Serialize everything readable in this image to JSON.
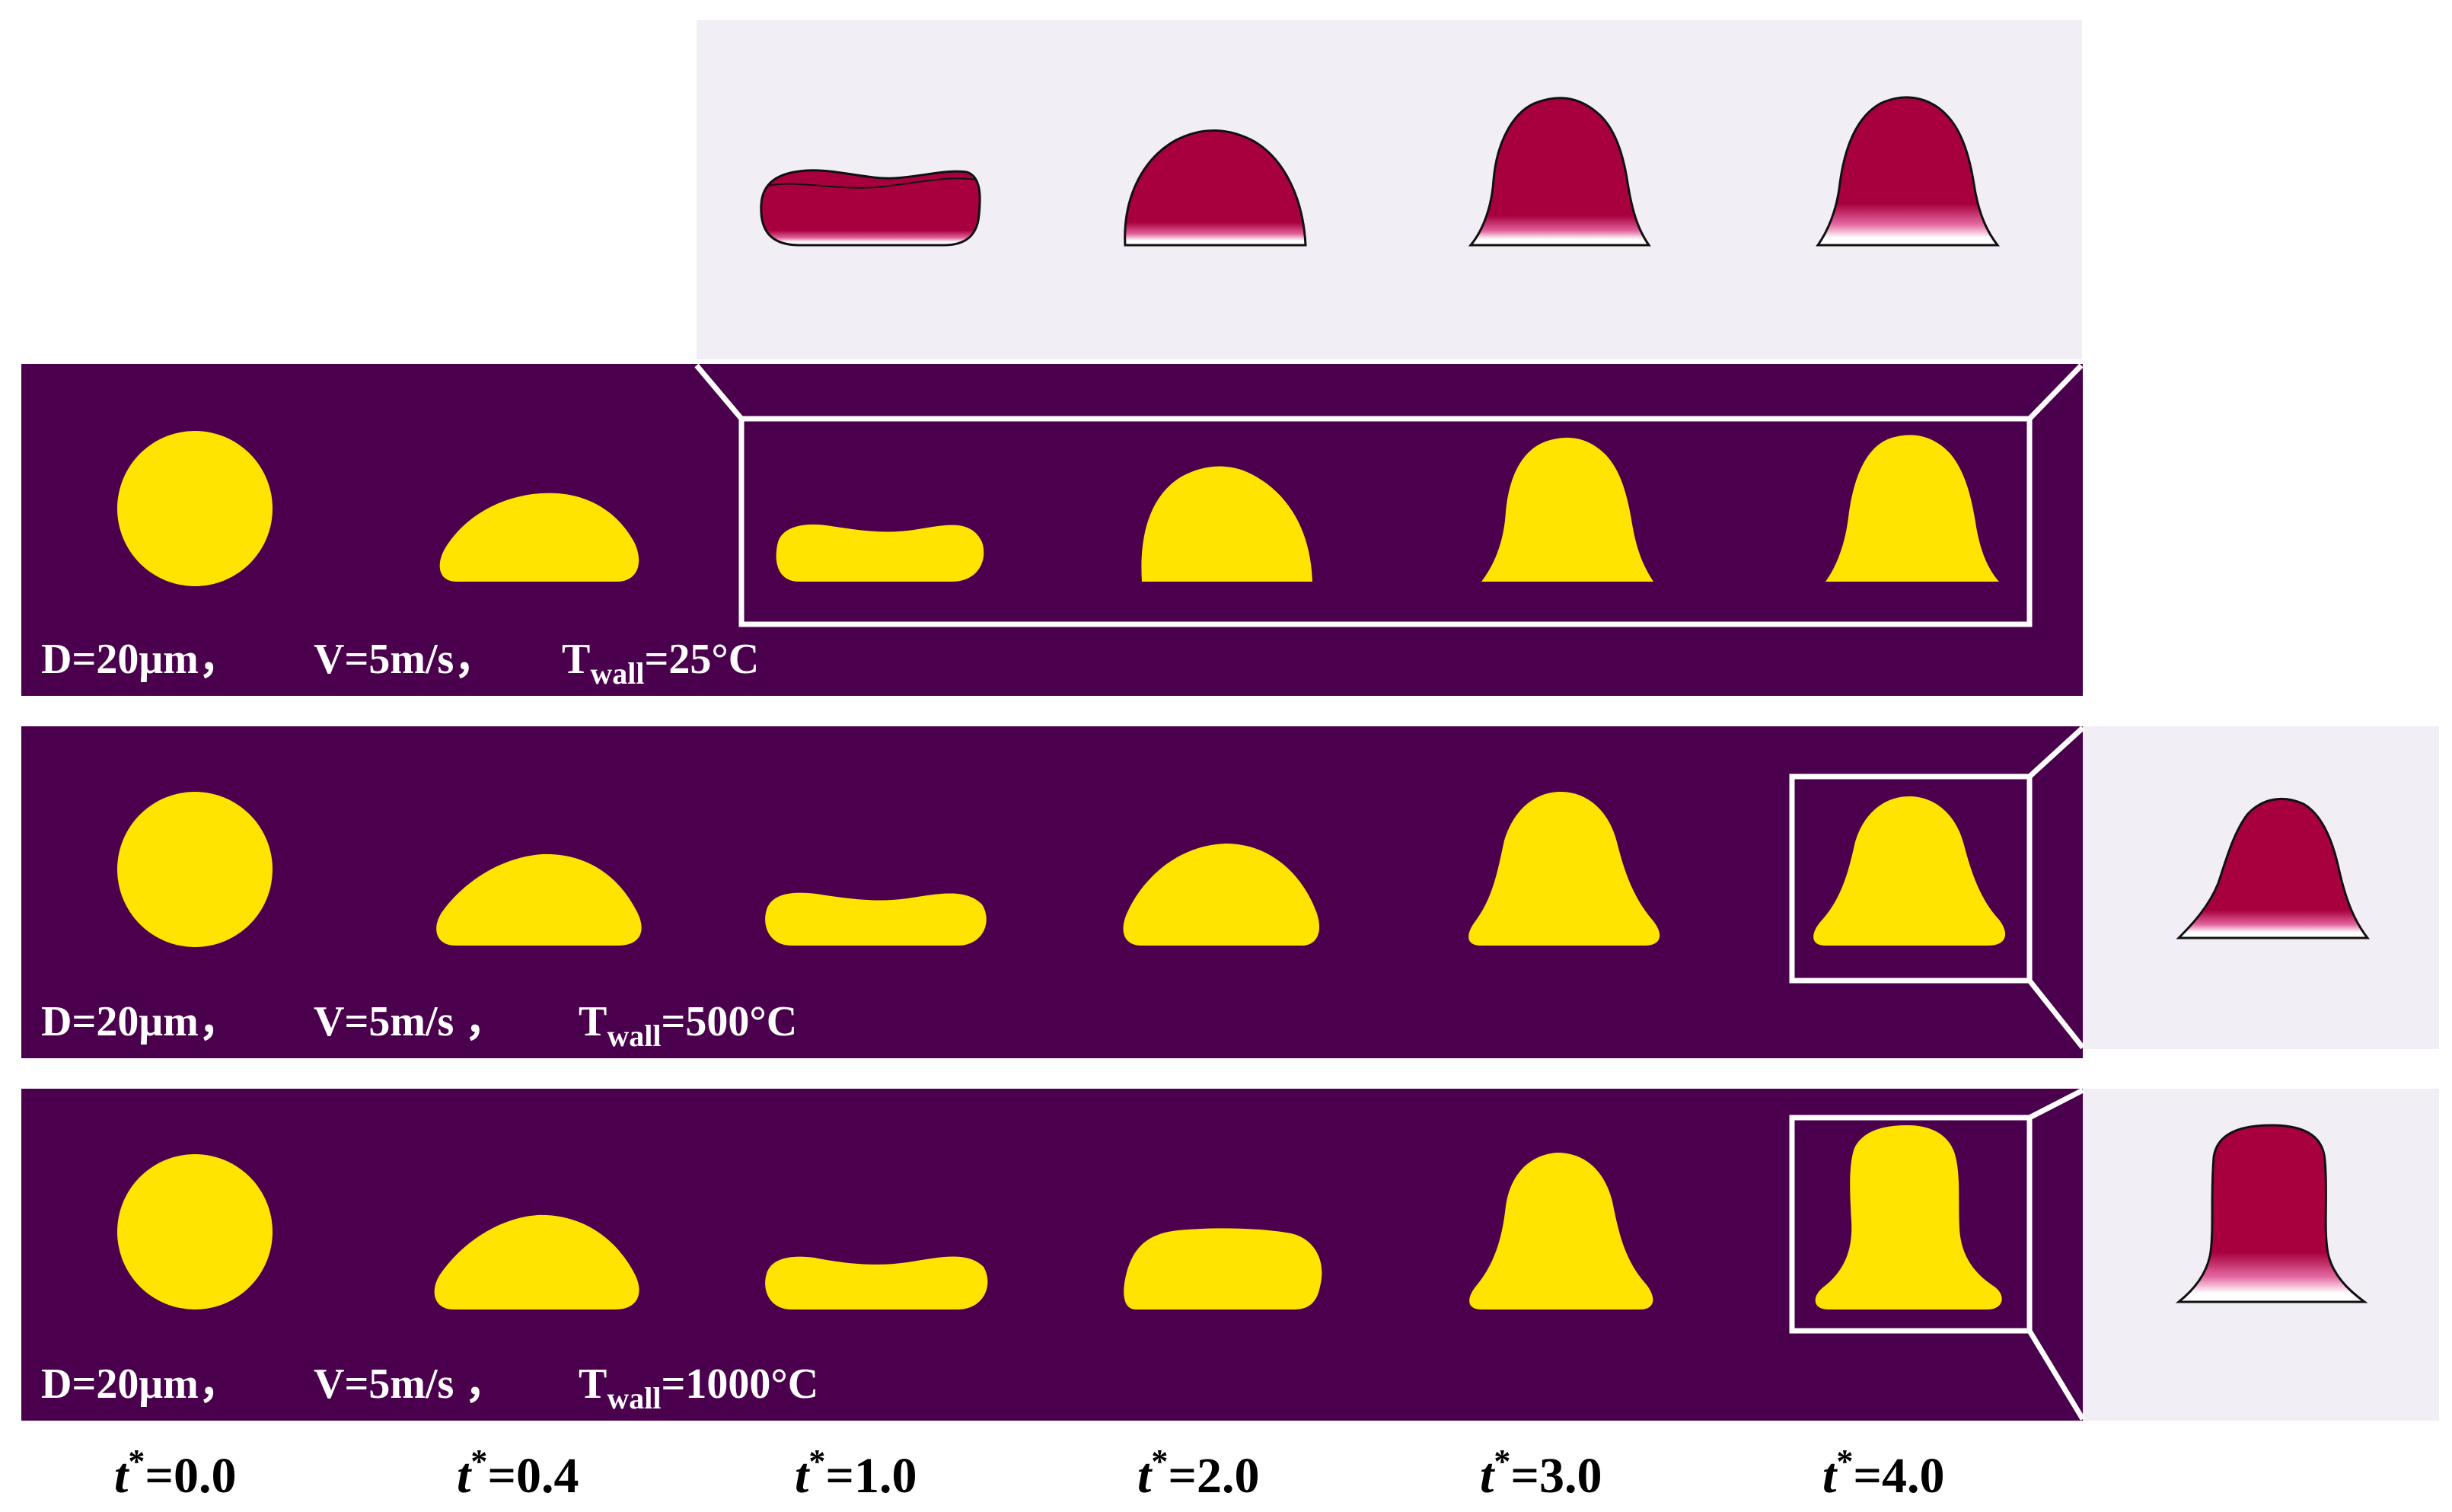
{
  "rows": [
    {
      "diameter": "D=20μm，",
      "velocity": "V=5m/s，",
      "t_sym": "T",
      "t_sub": "wall",
      "temperature": "=25°C"
    },
    {
      "diameter": "D=20μm，",
      "velocity": "V=5m/s ，",
      "t_sym": "T",
      "t_sub": "wall",
      "temperature": "=500°C"
    },
    {
      "diameter": "D=20μm，",
      "velocity": "V=5m/s ，",
      "t_sym": "T",
      "t_sub": "wall",
      "temperature": "=1000°C"
    }
  ],
  "time_labels": [
    {
      "sym": "t",
      "sup": "*",
      "val": "=0.0"
    },
    {
      "sym": "t",
      "sup": "*",
      "val": "=0.4"
    },
    {
      "sym": "t",
      "sup": "*",
      "val": "=1.0"
    },
    {
      "sym": "t",
      "sup": "*",
      "val": "=2.0"
    },
    {
      "sym": "t",
      "sup": "*",
      "val": "=3.0"
    },
    {
      "sym": "t",
      "sup": "*",
      "val": "=4.0"
    }
  ],
  "colors": {
    "panel_background": "#4b004e",
    "droplet": "#ffe400",
    "inset_background": "#f2eef5",
    "inset_droplet": "#a8003e",
    "frame": "#ffffff"
  }
}
